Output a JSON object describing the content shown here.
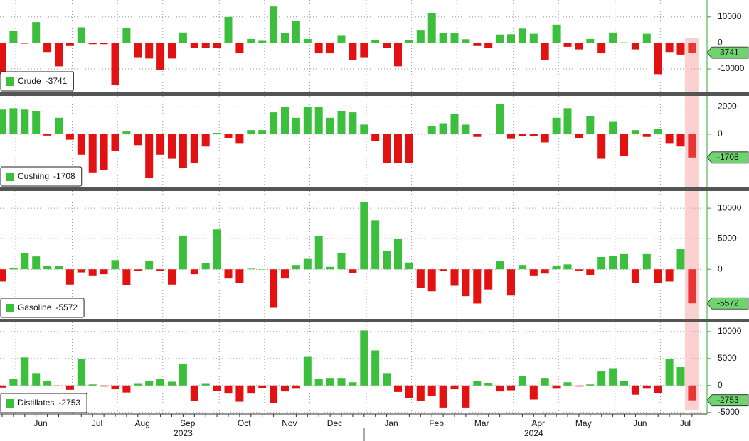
{
  "chart_data": [
    {
      "type": "bar",
      "positive_color": "#3cbf3c",
      "negative_color": "#e31212",
      "ylim": [
        -19000,
        16500
      ],
      "yticks": [
        10000,
        0,
        -10000
      ],
      "grid": true,
      "series": [
        {
          "name": "Crude",
          "values": [
            -12000,
            4500,
            -300,
            8000,
            -3500,
            -9000,
            -1200,
            6000,
            -500,
            -500,
            -16000,
            5800,
            -5500,
            -6000,
            -10500,
            -6000,
            4000,
            -2000,
            -2000,
            -2000,
            10000,
            -4000,
            1500,
            800,
            14000,
            3800,
            8500,
            1500,
            -4000,
            -4000,
            3000,
            -6500,
            -5500,
            1200,
            -2000,
            -9000,
            1200,
            5000,
            11500,
            3800,
            3800,
            1400,
            -1200,
            -1800,
            3200,
            3300,
            5500,
            3500,
            -6500,
            7000,
            -1500,
            -2500,
            1500,
            -4000,
            4000,
            200,
            -2500,
            3500,
            -12000,
            -3500,
            -4500,
            -3741
          ]
        }
      ]
    },
    {
      "type": "bar",
      "positive_color": "#3cbf3c",
      "negative_color": "#e31212",
      "ylim": [
        -3900,
        2800
      ],
      "yticks": [
        2000,
        0
      ],
      "grid": true,
      "series": [
        {
          "name": "Cushing",
          "values": [
            1800,
            1900,
            1800,
            1700,
            -100,
            1200,
            -400,
            -1500,
            -2800,
            -2600,
            -1200,
            200,
            -800,
            -3200,
            -1500,
            -1800,
            -2500,
            -2100,
            -900,
            100,
            -300,
            -700,
            300,
            300,
            1600,
            2000,
            1200,
            2000,
            2000,
            1200,
            1700,
            1600,
            700,
            -500,
            -2100,
            -2100,
            -2100,
            50,
            600,
            800,
            1500,
            700,
            -200,
            50,
            2200,
            -350,
            -150,
            -150,
            -600,
            1200,
            1900,
            -300,
            1300,
            -1800,
            900,
            -1600,
            300,
            -200,
            400,
            -700,
            -900,
            -1708
          ]
        }
      ]
    },
    {
      "type": "bar",
      "positive_color": "#3cbf3c",
      "negative_color": "#e31212",
      "ylim": [
        -8100,
        12800
      ],
      "yticks": [
        10000,
        5000,
        0
      ],
      "grid": true,
      "series": [
        {
          "name": "Gasoline",
          "values": [
            -2000,
            200,
            2700,
            2100,
            600,
            600,
            -2500,
            -500,
            -1000,
            -800,
            1500,
            -2600,
            -300,
            1400,
            -300,
            -2500,
            5500,
            -800,
            1000,
            6500,
            -1500,
            -2200,
            100,
            0,
            -6300,
            -1500,
            700,
            1700,
            5400,
            400,
            2700,
            -600,
            11000,
            8000,
            3000,
            5000,
            1100,
            -3000,
            -3600,
            -300,
            -2700,
            -4400,
            -5600,
            -3300,
            1300,
            -4300,
            700,
            -1000,
            -700,
            500,
            800,
            -200,
            -900,
            2000,
            2200,
            2600,
            -2200,
            2600,
            -2200,
            -2000,
            3300,
            -5572
          ]
        }
      ]
    },
    {
      "type": "bar",
      "positive_color": "#3cbf3c",
      "negative_color": "#e31212",
      "ylim": [
        -5300,
        11700
      ],
      "yticks": [
        10000,
        5000,
        0,
        -5000
      ],
      "grid": true,
      "series": [
        {
          "name": "Distillates",
          "values": [
            -400,
            1200,
            5200,
            2300,
            800,
            -100,
            -800,
            4900,
            200,
            -200,
            -700,
            -1300,
            300,
            900,
            1200,
            700,
            4000,
            -2800,
            300,
            -1000,
            -1500,
            -3000,
            -1500,
            -500,
            -3200,
            -1100,
            -600,
            5300,
            1200,
            1400,
            1400,
            600,
            10200,
            6500,
            2300,
            -1200,
            -2400,
            -2900,
            -2000,
            -4100,
            -700,
            -4100,
            800,
            500,
            -1100,
            -900,
            1800,
            -2600,
            1400,
            -600,
            600,
            -200,
            200,
            2600,
            3200,
            800,
            -1700,
            -600,
            -1400,
            4900,
            3400,
            -2753
          ]
        }
      ],
      "categories": [
        null,
        null,
        null,
        "Jun",
        null,
        null,
        null,
        null,
        "Jul",
        null,
        null,
        null,
        "Aug",
        null,
        null,
        null,
        "Sep",
        null,
        null,
        null,
        null,
        "Oct",
        null,
        null,
        null,
        "Nov",
        null,
        null,
        null,
        "Dec",
        null,
        null,
        null,
        null,
        "Jan",
        null,
        null,
        null,
        "Feb",
        null,
        null,
        null,
        "Mar",
        null,
        null,
        null,
        null,
        "Apr",
        null,
        null,
        null,
        "May",
        null,
        null,
        null,
        null,
        "Jun",
        null,
        null,
        null,
        "Jul",
        null
      ],
      "year_categories": [
        null,
        null,
        null,
        null,
        null,
        null,
        null,
        null,
        null,
        null,
        null,
        null,
        null,
        null,
        null,
        null,
        "2023",
        null,
        null,
        null,
        null,
        null,
        null,
        null,
        null,
        null,
        null,
        null,
        null,
        null,
        null,
        null,
        null,
        null,
        null,
        null,
        null,
        null,
        null,
        null,
        null,
        null,
        null,
        null,
        null,
        null,
        null,
        "2024",
        null,
        null,
        null,
        null,
        null,
        null,
        null,
        null,
        null,
        null,
        null,
        null,
        null,
        null
      ]
    }
  ]
}
